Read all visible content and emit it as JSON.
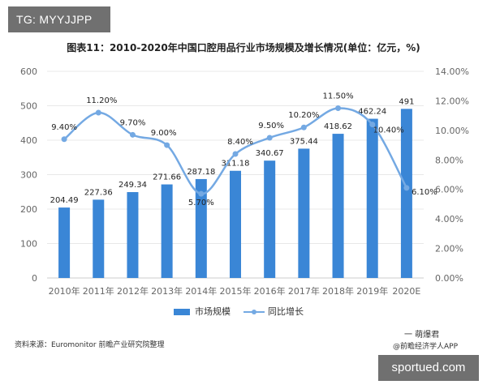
{
  "badge": "TG: MYYJJPP",
  "footer": {
    "source": "资料来源：Euromonitor 前瞻产业研究院整理",
    "wechat": "一 萌爆君",
    "app": "@前瞻经济学人APP",
    "site": "sportued.com"
  },
  "colors": {
    "bar": "#3a86d6",
    "line": "#74a9e3",
    "axis_text": "#666666",
    "grid": "#e8e8e8"
  },
  "chart_data": {
    "type": "bar",
    "title": "图表11：2010-2020年中国口腔用品行业市场规模及增长情况(单位：亿元，%)",
    "categories": [
      "2010年",
      "2011年",
      "2012年",
      "2013年",
      "2014年",
      "2015年",
      "2016年",
      "2017年",
      "2018年",
      "2019年",
      "2020E"
    ],
    "series": [
      {
        "name": "市场规模",
        "type": "bar",
        "axis": "left",
        "values": [
          204.49,
          227.36,
          249.34,
          271.66,
          287.18,
          311.18,
          340.67,
          375.44,
          418.62,
          462.24,
          491
        ],
        "labels": [
          "204.49",
          "227.36",
          "249.34",
          "271.66",
          "287.18",
          "311.18",
          "340.67",
          "375.44",
          "418.62",
          "462.24",
          "491"
        ]
      },
      {
        "name": "同比增长",
        "type": "line",
        "axis": "right",
        "values": [
          9.4,
          11.2,
          9.7,
          9.0,
          5.7,
          8.4,
          9.5,
          10.2,
          11.5,
          10.4,
          6.1
        ],
        "labels": [
          "9.40%",
          "11.20%",
          "9.70%",
          "9.00%",
          "5.70%",
          "8.40%",
          "9.50%",
          "10.20%",
          "11.50%",
          "10.40%",
          "6.10%"
        ]
      }
    ],
    "y_left": {
      "min": 0,
      "max": 600,
      "ticks": [
        "0",
        "100",
        "200",
        "300",
        "400",
        "500",
        "600"
      ]
    },
    "y_right": {
      "min": 0,
      "max": 14,
      "ticks": [
        "0.00%",
        "2.00%",
        "4.00%",
        "6.00%",
        "8.00%",
        "10.00%",
        "12.00%",
        "14.00%"
      ]
    },
    "grid": true,
    "legend": "bottom"
  }
}
